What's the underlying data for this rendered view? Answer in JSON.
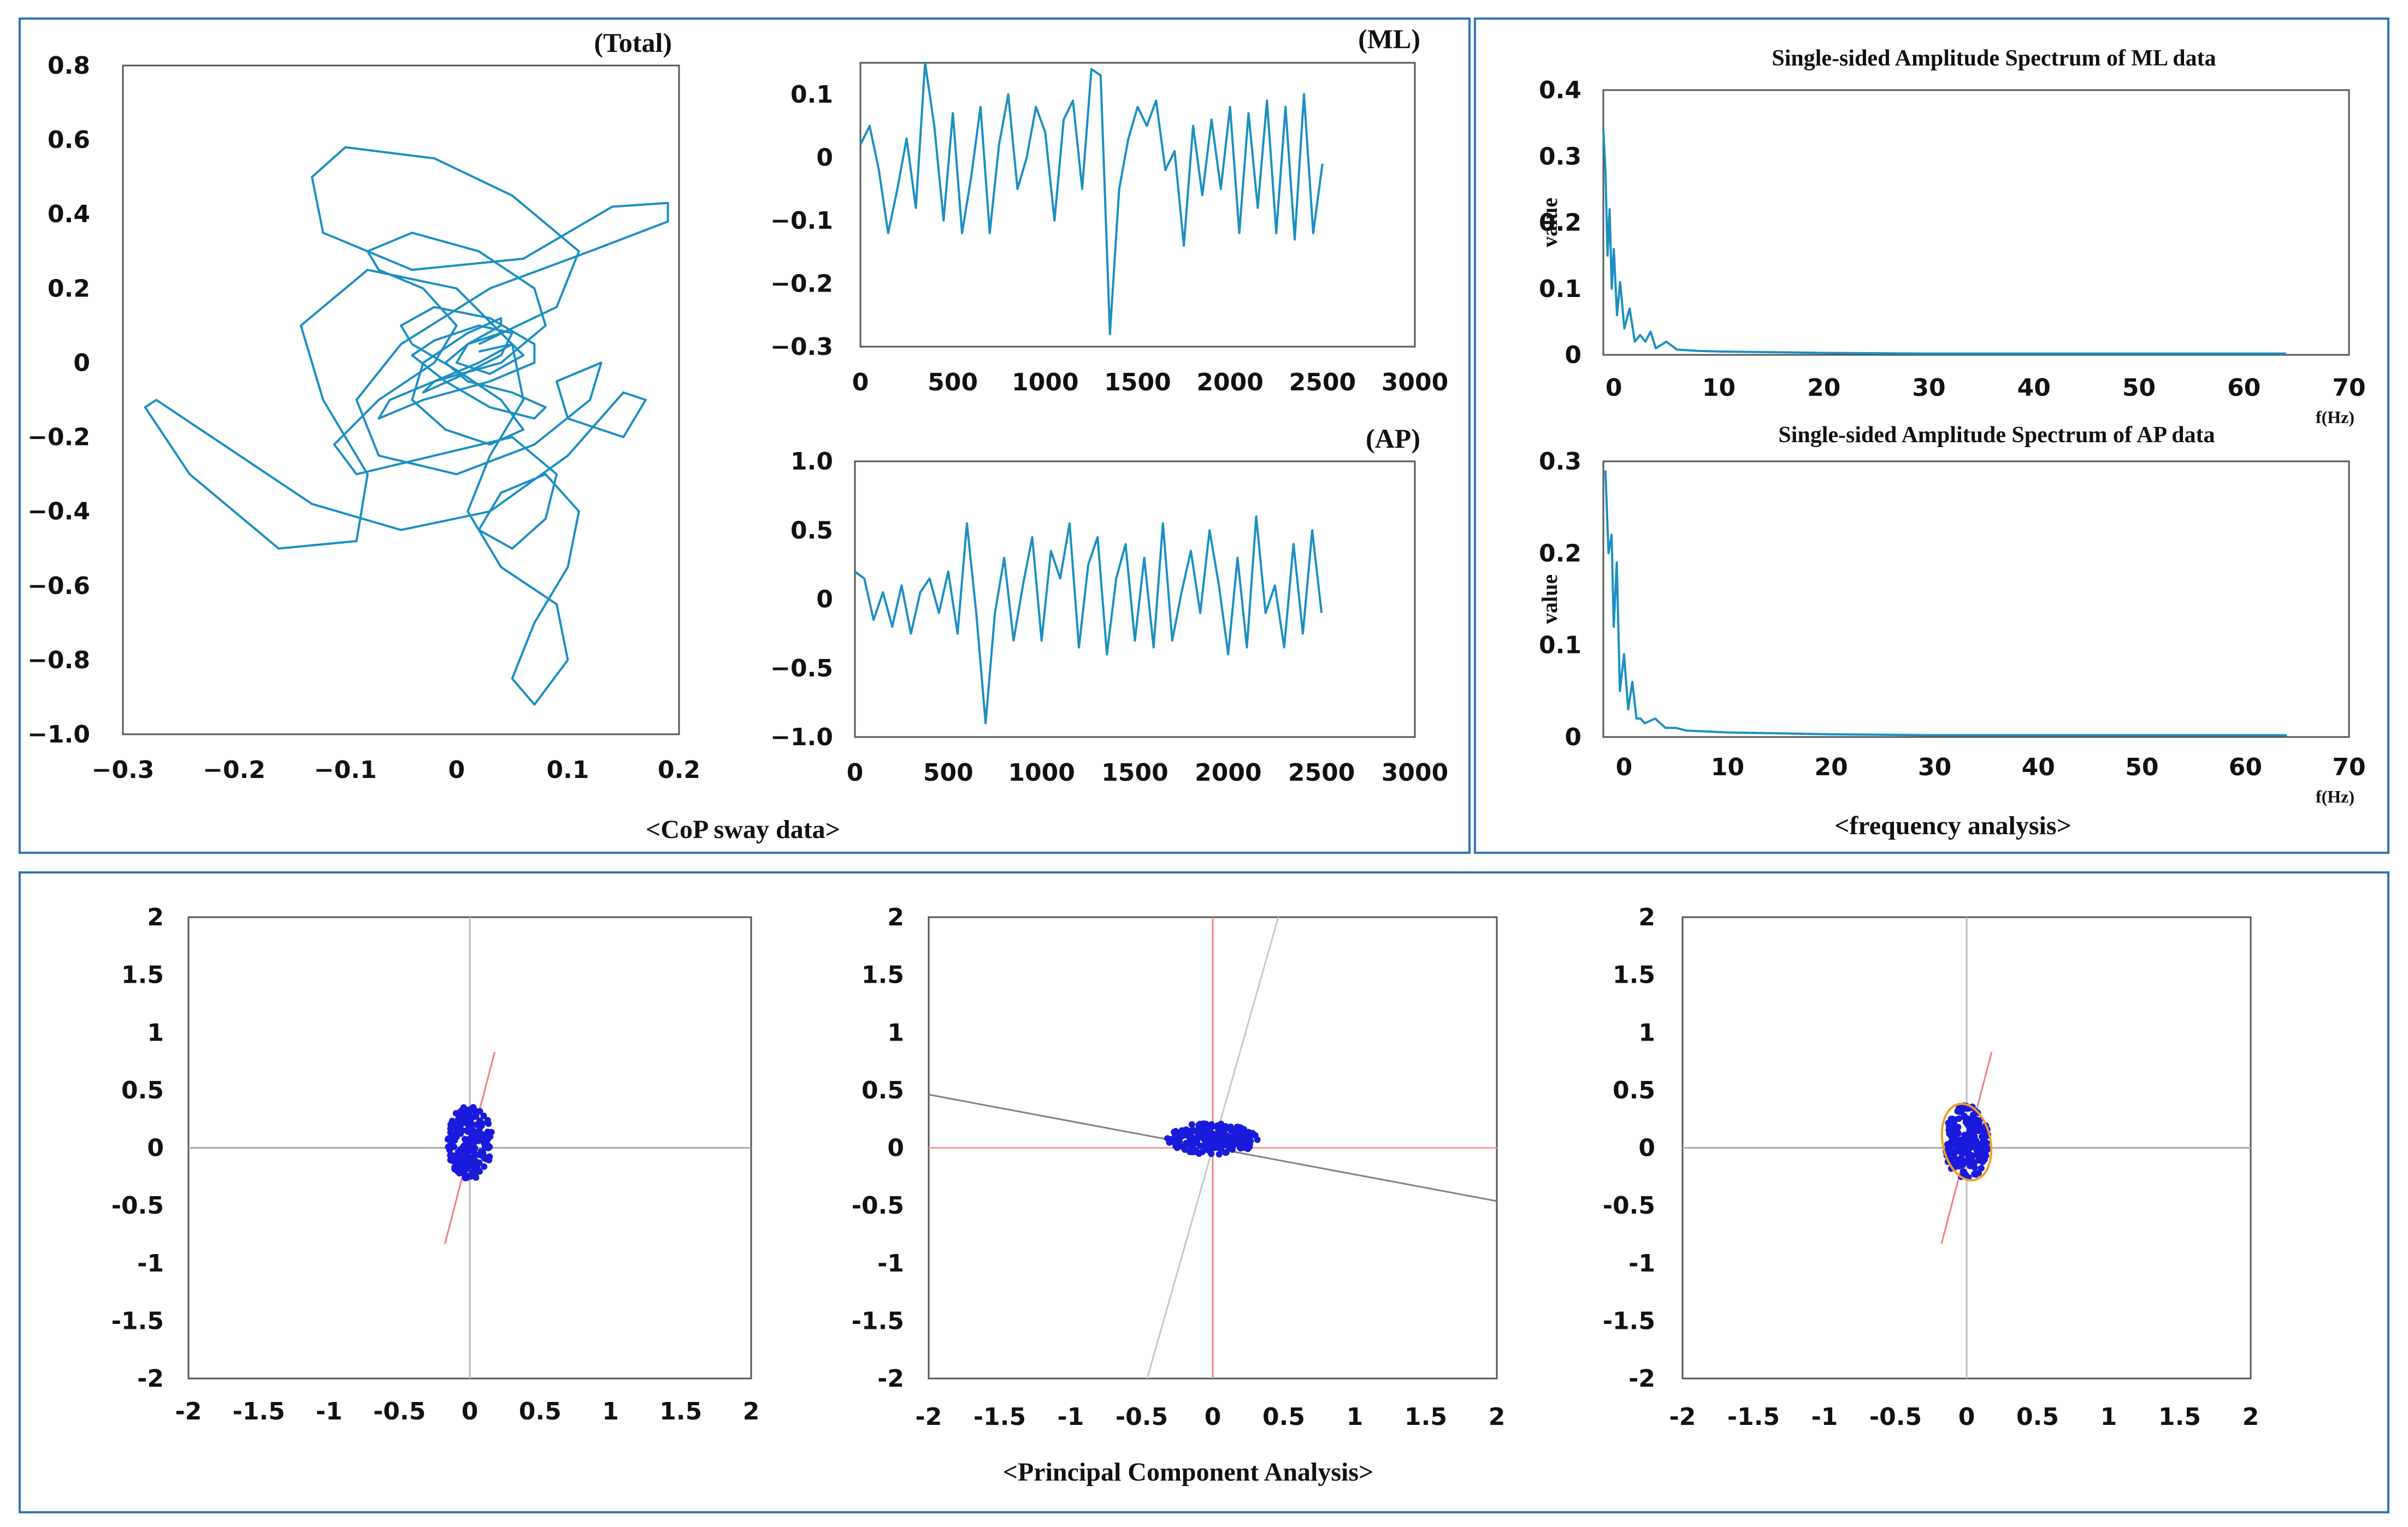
{
  "panels": {
    "cop_caption": "<CoP sway data>",
    "freq_caption": "<frequency analysis>",
    "pca_caption": "<Principal Component Analysis>"
  },
  "chart_data": [
    {
      "id": "total",
      "type": "line",
      "title": "(Total)",
      "xlim": [
        -0.3,
        0.2
      ],
      "ylim": [
        -1.0,
        0.8
      ],
      "xticks": [
        "−0.3",
        "−0.2",
        "−0.1",
        "0",
        "0.1",
        "0.2"
      ],
      "yticks": [
        "0.8",
        "0.6",
        "0.4",
        "0.2",
        "0",
        "−0.2",
        "−0.4",
        "−0.6",
        "−0.8",
        "−1.0"
      ],
      "series": [
        {
          "x": [
            0.02,
            0.09,
            0.11,
            0.05,
            -0.02,
            -0.1,
            -0.13,
            -0.12,
            -0.04,
            0.06,
            0.14,
            0.19,
            0.19,
            0.12,
            0.03,
            -0.05,
            -0.09,
            -0.07,
            0.0,
            0.07,
            0.12,
            0.13,
            0.09,
            0.1,
            0.15,
            0.17,
            0.15,
            0.1,
            0.03,
            -0.05,
            -0.13,
            -0.22,
            -0.27,
            -0.28,
            -0.24,
            -0.16,
            -0.09,
            -0.08,
            -0.12,
            -0.14,
            -0.08,
            0.0,
            0.05,
            0.06,
            0.03,
            0.01,
            0.04,
            0.09,
            0.1,
            0.07,
            0.05,
            0.07,
            0.1,
            0.11,
            0.08,
            0.04,
            0.02,
            0.05,
            0.08,
            0.09,
            0.05,
            -0.02,
            -0.09,
            -0.11,
            -0.07,
            -0.02,
            0.0,
            -0.03,
            -0.07,
            -0.08,
            -0.04,
            0.02,
            0.07,
            0.08,
            0.04,
            -0.02,
            -0.06,
            -0.07,
            -0.03,
            0.03,
            0.07,
            0.07,
            0.03,
            -0.02,
            -0.05,
            -0.04,
            0.0,
            0.04,
            0.06,
            0.03,
            -0.01,
            -0.04,
            -0.03,
            0.01,
            0.04,
            0.04,
            0.01,
            -0.01,
            0.01,
            0.05,
            0.08,
            0.07,
            0.03,
            -0.01,
            -0.04,
            -0.02,
            0.02,
            0.05,
            0.04,
            0.0,
            -0.03,
            -0.02,
            0.02,
            0.05,
            0.04,
            0.01,
            0.0,
            0.03,
            0.06,
            0.05,
            0.02
          ],
          "y": [
            0.05,
            0.15,
            0.3,
            0.45,
            0.55,
            0.58,
            0.5,
            0.35,
            0.25,
            0.28,
            0.42,
            0.43,
            0.38,
            0.3,
            0.2,
            0.05,
            -0.1,
            -0.25,
            -0.3,
            -0.22,
            -0.1,
            0.0,
            -0.05,
            -0.15,
            -0.2,
            -0.1,
            -0.08,
            -0.25,
            -0.4,
            -0.45,
            -0.38,
            -0.2,
            -0.1,
            -0.12,
            -0.3,
            -0.5,
            -0.48,
            -0.3,
            -0.1,
            0.1,
            0.25,
            0.2,
            0.05,
            -0.1,
            -0.25,
            -0.4,
            -0.55,
            -0.65,
            -0.8,
            -0.92,
            -0.85,
            -0.7,
            -0.55,
            -0.4,
            -0.3,
            -0.35,
            -0.45,
            -0.5,
            -0.42,
            -0.3,
            -0.2,
            -0.25,
            -0.3,
            -0.22,
            -0.1,
            0.0,
            0.1,
            0.2,
            0.25,
            0.3,
            0.35,
            0.3,
            0.2,
            0.1,
            0.0,
            -0.05,
            -0.1,
            -0.15,
            -0.1,
            -0.05,
            0.0,
            0.05,
            0.12,
            0.15,
            0.1,
            0.05,
            -0.02,
            -0.1,
            -0.18,
            -0.22,
            -0.18,
            -0.1,
            0.0,
            0.08,
            0.12,
            0.1,
            0.05,
            0.0,
            -0.05,
            -0.08,
            -0.12,
            -0.15,
            -0.12,
            -0.05,
            0.02,
            0.06,
            0.1,
            0.08,
            0.02,
            -0.04,
            -0.08,
            -0.05,
            0.0,
            0.05,
            0.08,
            0.05,
            0.0,
            -0.03,
            0.02,
            0.05,
            0.03
          ]
        }
      ]
    },
    {
      "id": "ml",
      "type": "line",
      "title": "(ML)",
      "xlim": [
        0,
        3000
      ],
      "ylim": [
        -0.3,
        0.15
      ],
      "xticks": [
        "0",
        "500",
        "1000",
        "1500",
        "2000",
        "2500",
        "3000"
      ],
      "yticks": [
        "0.1",
        "0",
        "−0.1",
        "−0.2",
        "−0.3"
      ],
      "series": [
        {
          "x": [
            0,
            50,
            100,
            150,
            200,
            250,
            300,
            350,
            400,
            450,
            500,
            550,
            600,
            650,
            700,
            750,
            800,
            850,
            900,
            950,
            1000,
            1050,
            1100,
            1150,
            1200,
            1250,
            1300,
            1350,
            1400,
            1450,
            1500,
            1550,
            1600,
            1650,
            1700,
            1750,
            1800,
            1850,
            1900,
            1950,
            2000,
            2050,
            2100,
            2150,
            2200,
            2250,
            2300,
            2350,
            2400,
            2450,
            2500
          ],
          "y": [
            0.02,
            0.05,
            -0.02,
            -0.12,
            -0.05,
            0.03,
            -0.08,
            0.15,
            0.05,
            -0.1,
            0.07,
            -0.12,
            -0.03,
            0.08,
            -0.12,
            0.02,
            0.1,
            -0.05,
            0.0,
            0.08,
            0.04,
            -0.1,
            0.06,
            0.09,
            -0.05,
            0.14,
            0.13,
            -0.28,
            -0.05,
            0.03,
            0.08,
            0.05,
            0.09,
            -0.02,
            0.01,
            -0.14,
            0.05,
            -0.06,
            0.06,
            -0.05,
            0.08,
            -0.12,
            0.07,
            -0.08,
            0.09,
            -0.12,
            0.08,
            -0.13,
            0.1,
            -0.12,
            -0.01
          ]
        }
      ]
    },
    {
      "id": "ap",
      "type": "line",
      "title": "(AP)",
      "xlim": [
        0,
        3000
      ],
      "ylim": [
        -1.0,
        1.0
      ],
      "xticks": [
        "0",
        "500",
        "1000",
        "1500",
        "2000",
        "2500",
        "3000"
      ],
      "yticks": [
        "1.0",
        "0.5",
        "0",
        "−0.5",
        "−1.0"
      ],
      "series": [
        {
          "x": [
            0,
            50,
            100,
            150,
            200,
            250,
            300,
            350,
            400,
            450,
            500,
            550,
            600,
            650,
            700,
            750,
            800,
            850,
            900,
            950,
            1000,
            1050,
            1100,
            1150,
            1200,
            1250,
            1300,
            1350,
            1400,
            1450,
            1500,
            1550,
            1600,
            1650,
            1700,
            1750,
            1800,
            1850,
            1900,
            1950,
            2000,
            2050,
            2100,
            2150,
            2200,
            2250,
            2300,
            2350,
            2400,
            2450,
            2500
          ],
          "y": [
            0.2,
            0.15,
            -0.15,
            0.05,
            -0.2,
            0.1,
            -0.25,
            0.05,
            0.15,
            -0.1,
            0.2,
            -0.25,
            0.55,
            -0.1,
            -0.9,
            -0.1,
            0.3,
            -0.3,
            0.1,
            0.45,
            -0.3,
            0.35,
            0.15,
            0.55,
            -0.35,
            0.25,
            0.45,
            -0.4,
            0.15,
            0.4,
            -0.3,
            0.3,
            -0.35,
            0.55,
            -0.3,
            0.05,
            0.35,
            -0.1,
            0.5,
            0.1,
            -0.4,
            0.3,
            -0.35,
            0.6,
            -0.1,
            0.1,
            -0.35,
            0.4,
            -0.25,
            0.5,
            -0.1
          ]
        }
      ]
    },
    {
      "id": "spec_ml",
      "type": "line",
      "title": "Single-sided Amplitude Spectrum of ML data",
      "xlabel": "f(Hz)",
      "ylabel": "value",
      "xlim": [
        -1,
        70
      ],
      "ylim": [
        0,
        0.4
      ],
      "xticks": [
        "0",
        "10",
        "20",
        "30",
        "40",
        "50",
        "60",
        "70"
      ],
      "yticks": [
        "0.4",
        "0.3",
        "0.2",
        "0.1",
        "0"
      ],
      "series": [
        {
          "x": [
            -1,
            -0.8,
            -0.6,
            -0.4,
            -0.2,
            0,
            0.3,
            0.6,
            1,
            1.5,
            2,
            2.5,
            3,
            3.5,
            4,
            5,
            6,
            8,
            10,
            15,
            20,
            30,
            40,
            50,
            60,
            64
          ],
          "y": [
            0.34,
            0.28,
            0.15,
            0.22,
            0.1,
            0.16,
            0.06,
            0.11,
            0.04,
            0.07,
            0.02,
            0.03,
            0.02,
            0.035,
            0.01,
            0.02,
            0.008,
            0.006,
            0.005,
            0.004,
            0.003,
            0.002,
            0.002,
            0.002,
            0.002,
            0.002
          ]
        }
      ]
    },
    {
      "id": "spec_ap",
      "type": "line",
      "title": "Single-sided Amplitude Spectrum of AP data",
      "xlabel": "f(Hz)",
      "ylabel": "value",
      "xlim": [
        -2,
        70
      ],
      "ylim": [
        0,
        0.3
      ],
      "xticks": [
        "0",
        "10",
        "20",
        "30",
        "40",
        "50",
        "60",
        "70"
      ],
      "yticks": [
        "0.3",
        "0.2",
        "0.1",
        "0"
      ],
      "series": [
        {
          "x": [
            -1.8,
            -1.5,
            -1.2,
            -1,
            -0.7,
            -0.4,
            0,
            0.4,
            0.8,
            1.2,
            1.6,
            2,
            3,
            4,
            5,
            6,
            8,
            10,
            15,
            20,
            30,
            40,
            50,
            60,
            64
          ],
          "y": [
            0.29,
            0.2,
            0.22,
            0.12,
            0.19,
            0.05,
            0.09,
            0.03,
            0.06,
            0.02,
            0.02,
            0.015,
            0.02,
            0.01,
            0.01,
            0.007,
            0.006,
            0.005,
            0.004,
            0.003,
            0.002,
            0.002,
            0.002,
            0.002,
            0.002
          ]
        }
      ]
    },
    {
      "id": "pca1",
      "type": "scatter",
      "xlim": [
        -2,
        2
      ],
      "ylim": [
        -2,
        2
      ],
      "xticks": [
        "-2",
        "-1.5",
        "-1",
        "-0.5",
        "0",
        "0.5",
        "1",
        "1.5",
        "2"
      ],
      "yticks": [
        "2",
        "1.5",
        "1",
        "0.5",
        "0",
        "-0.5",
        "-1",
        "-1.5",
        "-2"
      ],
      "pc_line": {
        "angle_deg": 78,
        "half_length": 0.85,
        "color": "#f08080"
      },
      "cluster": {
        "cx": 0.0,
        "cy": 0.05,
        "rx": 0.16,
        "ry": 0.32,
        "count": 220
      },
      "ellipse": false
    },
    {
      "id": "pca2",
      "type": "scatter",
      "xlim": [
        -2,
        2
      ],
      "ylim": [
        -2,
        2
      ],
      "xticks": [
        "-2",
        "-1.5",
        "-1",
        "-0.5",
        "0",
        "0.5",
        "1",
        "1.5",
        "2"
      ],
      "yticks": [
        "2",
        "1.5",
        "1",
        "0.5",
        "0",
        "-0.5",
        "-1",
        "-1.5",
        "-2"
      ],
      "pc_line": {
        "angle_deg": -13,
        "color": "#808080"
      },
      "pc_line2": {
        "angle_deg": 77,
        "color": "#c8c8c8"
      },
      "cluster": {
        "cx": 0.0,
        "cy": 0.08,
        "rx": 0.32,
        "ry": 0.14,
        "count": 220
      },
      "ellipse": false
    },
    {
      "id": "pca3",
      "type": "scatter",
      "xlim": [
        -2,
        2
      ],
      "ylim": [
        -2,
        2
      ],
      "xticks": [
        "-2",
        "-1.5",
        "-1",
        "-0.5",
        "0",
        "0.5",
        "1",
        "1.5",
        "2"
      ],
      "yticks": [
        "2",
        "1.5",
        "1",
        "0.5",
        "0",
        "-0.5",
        "-1",
        "-1.5",
        "-2"
      ],
      "pc_line": {
        "angle_deg": 78,
        "half_length": 0.85,
        "color": "#f08080"
      },
      "cluster": {
        "cx": 0.0,
        "cy": 0.05,
        "rx": 0.16,
        "ry": 0.32,
        "count": 220
      },
      "ellipse": true,
      "ellipse_color": "#f0a020"
    }
  ]
}
